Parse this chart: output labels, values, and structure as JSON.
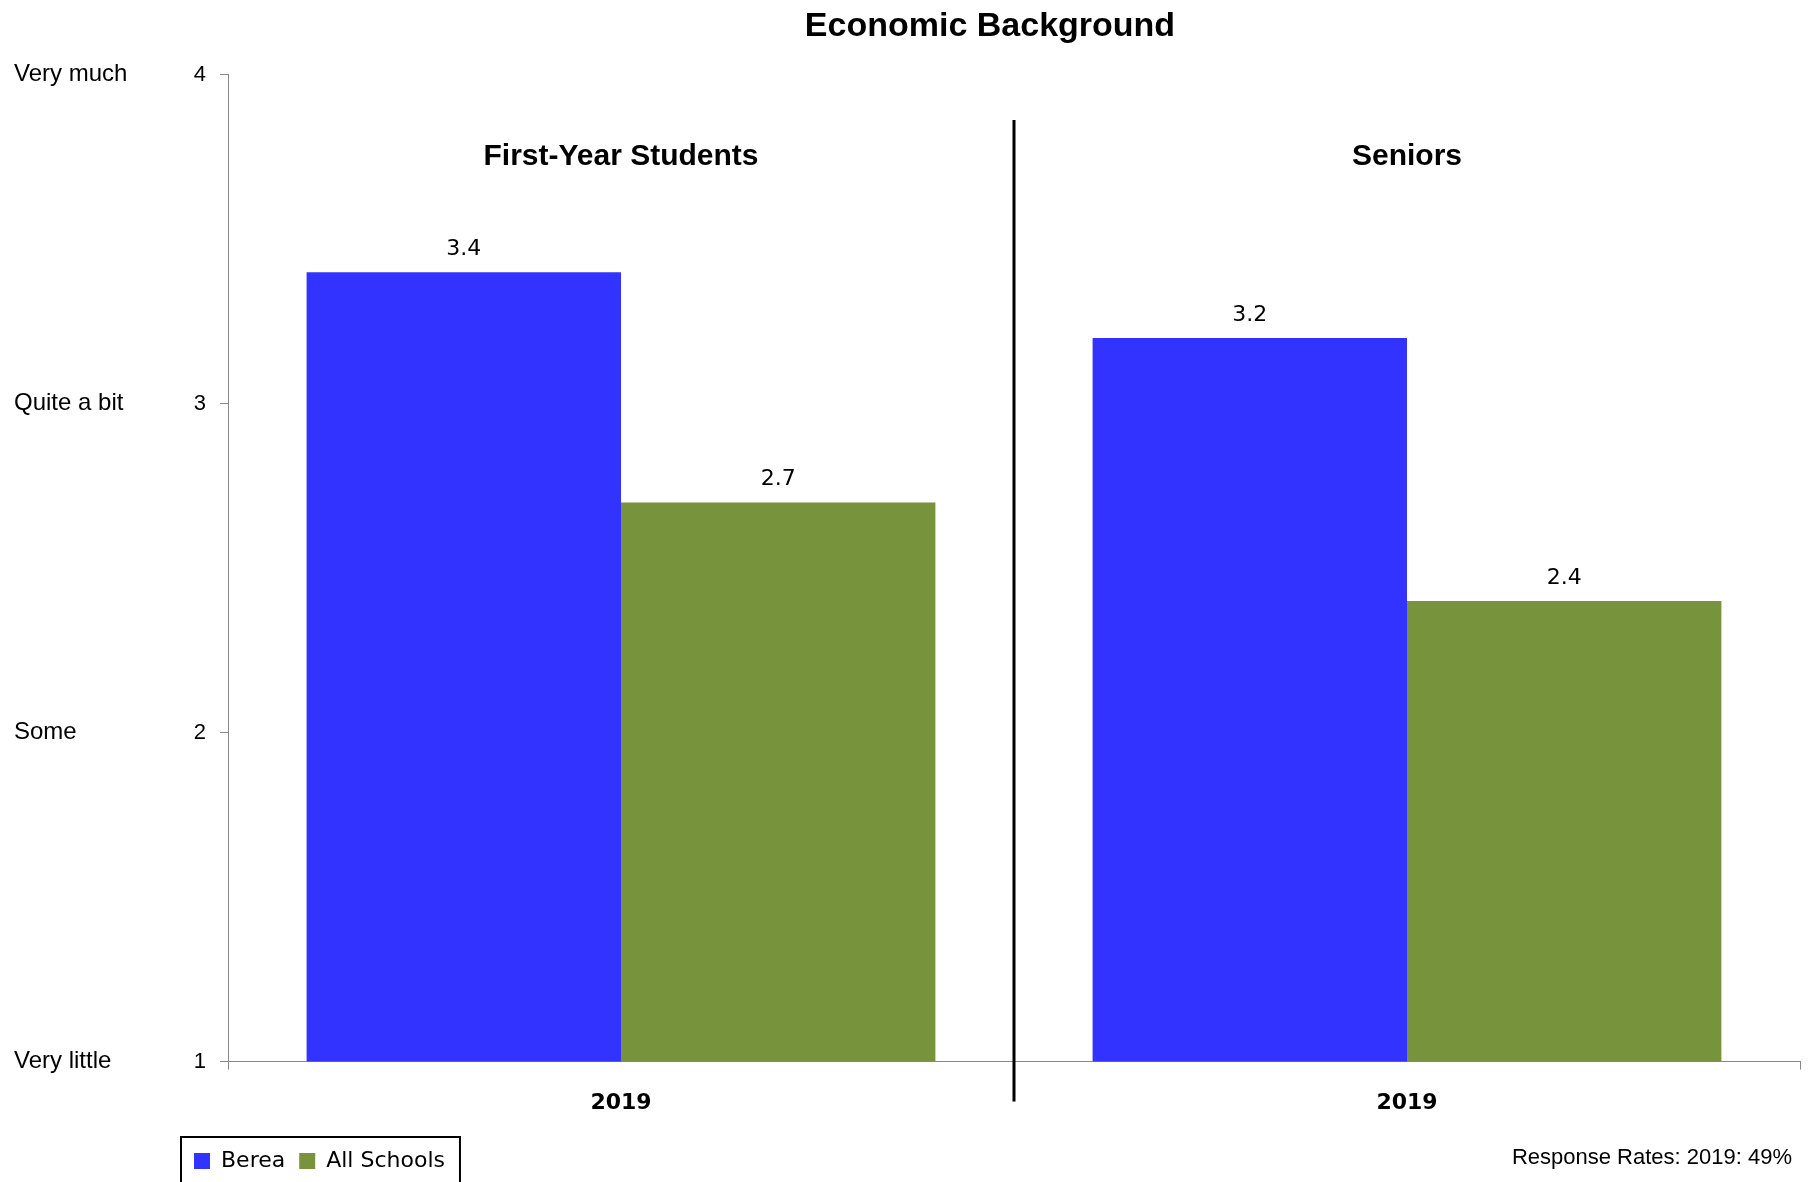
{
  "chart_data": {
    "type": "bar",
    "title": "Economic Background",
    "categories": [
      "2019",
      "2019"
    ],
    "series": [
      {
        "name": "Berea",
        "color": "#3333ff",
        "values": [
          3.4,
          3.2
        ]
      },
      {
        "name": "All Schools",
        "color": "#77933c",
        "values": [
          2.7,
          2.4
        ]
      }
    ],
    "ylim": [
      1,
      4
    ],
    "yticks": [
      1,
      2,
      3,
      4
    ],
    "annotations": [
      "First-Year Students",
      "Seniors",
      "Response Rates: 2019: 49%",
      "Very much",
      "Quite a bit",
      "Some",
      "Very little"
    ],
    "data_labels": true,
    "grid": false,
    "legend": "bottom left"
  }
}
